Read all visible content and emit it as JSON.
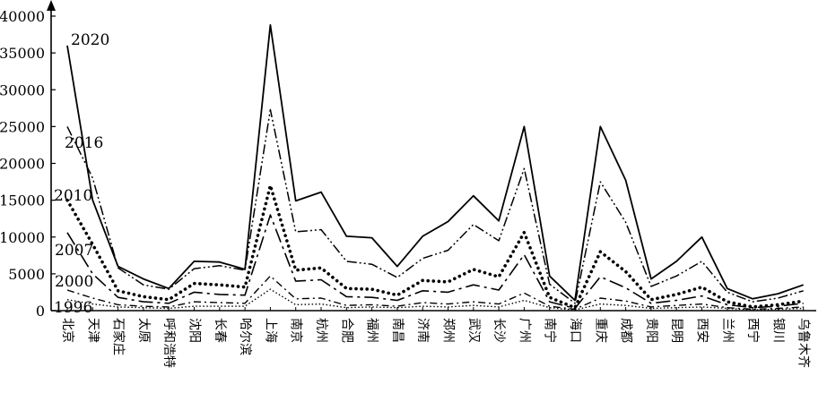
{
  "chart_data": {
    "type": "line",
    "title": "",
    "xlabel": "",
    "ylabel": "",
    "ylim": [
      0,
      40000
    ],
    "yticks": [
      0,
      5000,
      10000,
      15000,
      20000,
      25000,
      30000,
      35000,
      40000
    ],
    "ytick_labels": [
      "0",
      "5000",
      "10000",
      "15000",
      "20000",
      "25000",
      "30000",
      "35000",
      "40000"
    ],
    "categories": [
      "北京",
      "天津",
      "石家庄",
      "太原",
      "呼和浩特",
      "沈阳",
      "长春",
      "哈尔滨",
      "上海",
      "南京",
      "杭州",
      "合肥",
      "福州",
      "南昌",
      "济南",
      "郑州",
      "武汉",
      "长沙",
      "广州",
      "南宁",
      "海口",
      "重庆",
      "成都",
      "贵阳",
      "昆明",
      "西安",
      "兰州",
      "西宁",
      "银川",
      "乌鲁木齐"
    ],
    "grid": false,
    "series": [
      {
        "name": "2020",
        "style": "solid",
        "values": [
          36000,
          15000,
          6000,
          4300,
          3000,
          6700,
          6600,
          5600,
          38800,
          14900,
          16100,
          10100,
          9900,
          6000,
          10100,
          12100,
          15600,
          12200,
          25000,
          4700,
          1400,
          25000,
          17700,
          4300,
          6700,
          10000,
          3000,
          1600,
          2300,
          3500
        ]
      },
      {
        "name": "2016",
        "style": "dash-dot-dot",
        "values": [
          25000,
          18000,
          5800,
          3500,
          2900,
          5700,
          6100,
          5500,
          27300,
          10700,
          11000,
          6700,
          6300,
          4500,
          7100,
          8200,
          11700,
          9500,
          19300,
          3600,
          1000,
          17500,
          12000,
          3300,
          4700,
          6700,
          2500,
          1200,
          1700,
          2700
        ]
      },
      {
        "name": "2010",
        "style": "dotted-thick",
        "values": [
          15000,
          9000,
          2700,
          1900,
          1500,
          3700,
          3500,
          3200,
          17000,
          5500,
          5800,
          3000,
          2900,
          2100,
          4100,
          3900,
          5600,
          4600,
          10600,
          1800,
          400,
          8000,
          5300,
          1500,
          2200,
          3200,
          1200,
          500,
          800,
          1300
        ]
      },
      {
        "name": "2007",
        "style": "long-dash",
        "values": [
          10600,
          5000,
          1800,
          1200,
          1000,
          2500,
          2200,
          2100,
          13000,
          4000,
          4200,
          1900,
          1800,
          1400,
          2700,
          2500,
          3500,
          2800,
          7600,
          1200,
          300,
          4600,
          3100,
          1000,
          1400,
          2000,
          800,
          400,
          600,
          1000
        ]
      },
      {
        "name": "2000",
        "style": "dash-dot",
        "values": [
          2800,
          1700,
          800,
          600,
          500,
          1200,
          1100,
          1000,
          4700,
          1600,
          1700,
          700,
          800,
          600,
          1100,
          900,
          1200,
          900,
          2400,
          600,
          200,
          1700,
          1300,
          500,
          700,
          900,
          400,
          200,
          300,
          500
        ]
      },
      {
        "name": "1996",
        "style": "fine-dot",
        "values": [
          1500,
          900,
          500,
          400,
          300,
          600,
          600,
          600,
          2900,
          800,
          900,
          400,
          500,
          400,
          600,
          500,
          700,
          500,
          1400,
          400,
          100,
          900,
          700,
          300,
          400,
          500,
          300,
          100,
          200,
          300
        ]
      }
    ]
  }
}
